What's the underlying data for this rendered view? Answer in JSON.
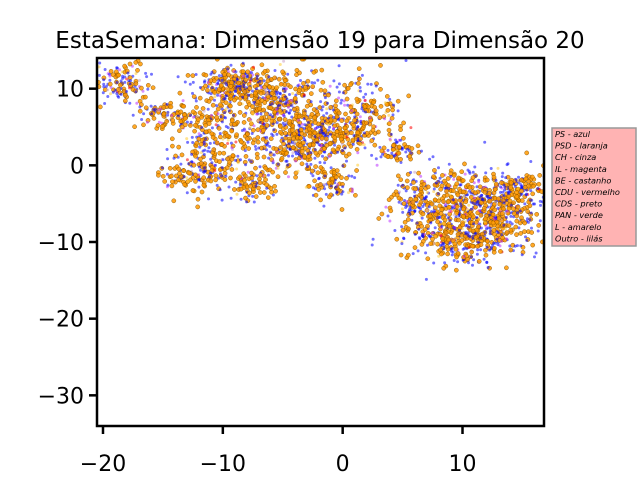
{
  "chart_data": {
    "type": "scatter",
    "title": "EstaSemana: Dimensão 19 para Dimensão 20",
    "xlabel": "",
    "ylabel": "",
    "xlim": [
      -20.5,
      16.8
    ],
    "ylim": [
      -34,
      14
    ],
    "x_ticks": [
      -20,
      -10,
      0,
      10
    ],
    "x_tick_labels": [
      "−20",
      "−10",
      "0",
      "10"
    ],
    "y_ticks": [
      10,
      0,
      -10,
      -20,
      -30
    ],
    "y_tick_labels": [
      "10",
      "0",
      "−10",
      "−20",
      "−30"
    ],
    "grid": false,
    "legend_position": "right, outside plot",
    "legend_background": "#ffb3b3",
    "legend": [
      {
        "label": "PS - azul",
        "color": "#0000ff"
      },
      {
        "label": "PSD - laranja",
        "color": "#ffa500"
      },
      {
        "label": "CH - cinza",
        "color": "#808080"
      },
      {
        "label": "IL - magenta",
        "color": "#ff00ff"
      },
      {
        "label": "BE - castanho",
        "color": "#8b4513"
      },
      {
        "label": "CDU - vermelho",
        "color": "#ff0000"
      },
      {
        "label": "CDS - preto",
        "color": "#000000"
      },
      {
        "label": "PAN - verde",
        "color": "#008000"
      },
      {
        "label": "L - amarelo",
        "color": "#ffff00"
      },
      {
        "label": "Outro - lilás",
        "color": "#c8a2c8"
      }
    ],
    "clusters": [
      {
        "cx": -18.5,
        "cy": 10.5,
        "sx": 1.3,
        "sy": 1.3,
        "n": 120
      },
      {
        "cx": -15.5,
        "cy": 7.0,
        "sx": 1.0,
        "sy": 0.9,
        "n": 60
      },
      {
        "cx": -13.0,
        "cy": 6.3,
        "sx": 1.6,
        "sy": 0.6,
        "n": 60
      },
      {
        "cx": -12.0,
        "cy": -1.0,
        "sx": 1.5,
        "sy": 1.4,
        "n": 160
      },
      {
        "cx": -10.5,
        "cy": 3.8,
        "sx": 1.8,
        "sy": 2.0,
        "n": 170
      },
      {
        "cx": -9.0,
        "cy": 10.2,
        "sx": 1.8,
        "sy": 1.5,
        "n": 260
      },
      {
        "cx": -7.5,
        "cy": -2.5,
        "sx": 1.0,
        "sy": 1.2,
        "n": 90
      },
      {
        "cx": -5.5,
        "cy": 7.5,
        "sx": 2.3,
        "sy": 2.6,
        "n": 420
      },
      {
        "cx": -4.0,
        "cy": 2.0,
        "sx": 1.6,
        "sy": 1.5,
        "n": 160
      },
      {
        "cx": -1.5,
        "cy": 4.0,
        "sx": 1.8,
        "sy": 1.7,
        "n": 220
      },
      {
        "cx": -1.0,
        "cy": -2.5,
        "sx": 1.0,
        "sy": 1.3,
        "n": 90
      },
      {
        "cx": 1.5,
        "cy": 6.5,
        "sx": 1.8,
        "sy": 2.4,
        "n": 210
      },
      {
        "cx": 4.5,
        "cy": 2.0,
        "sx": 0.7,
        "sy": 0.8,
        "n": 60
      },
      {
        "cx": 6.0,
        "cy": -4.0,
        "sx": 1.0,
        "sy": 1.6,
        "n": 80
      },
      {
        "cx": 9.5,
        "cy": -5.0,
        "sx": 2.6,
        "sy": 2.6,
        "n": 420
      },
      {
        "cx": 12.5,
        "cy": -6.5,
        "sx": 2.3,
        "sy": 2.3,
        "n": 340
      },
      {
        "cx": 10.0,
        "cy": -10.0,
        "sx": 2.3,
        "sy": 1.7,
        "n": 220
      },
      {
        "cx": 14.5,
        "cy": -3.5,
        "sx": 1.3,
        "sy": 1.4,
        "n": 130
      }
    ],
    "series_mix": [
      {
        "name": "PSD - laranja",
        "color": "#ff9900",
        "share": 0.52
      },
      {
        "name": "PS - azul",
        "color": "#0000ff",
        "share": 0.36
      },
      {
        "name": "IL - magenta",
        "color": "#bb33ff",
        "share": 0.05
      },
      {
        "name": "L - amarelo",
        "color": "#ffcc33",
        "share": 0.04
      },
      {
        "name": "CDU - vermelho",
        "color": "#ff0000",
        "share": 0.015
      },
      {
        "name": "Outro - lilás",
        "color": "#c8a2c8",
        "share": 0.015
      }
    ]
  }
}
